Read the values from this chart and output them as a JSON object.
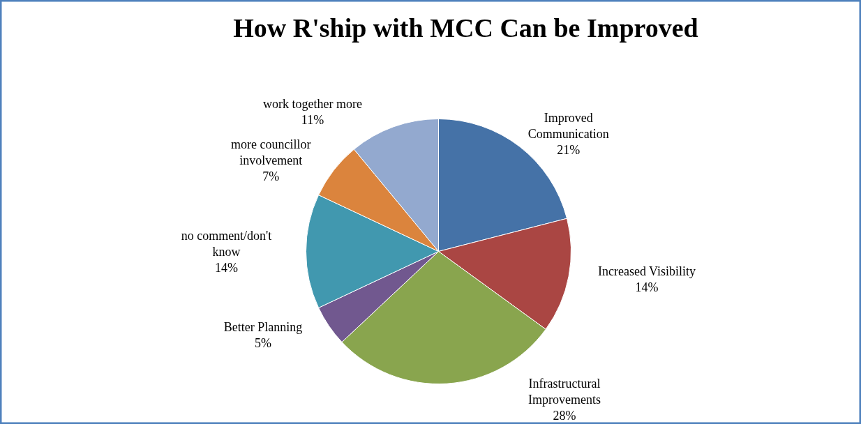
{
  "chart_data": {
    "type": "pie",
    "title": "How R'ship with MCC Can be Improved",
    "categories": [
      "Improved\nCommunication",
      "Increased Visibility",
      "Infrastructural\nImprovements",
      "Better Planning",
      "no comment/don't\nknow",
      "more councillor\ninvolvement",
      "work together more"
    ],
    "values": [
      21,
      14,
      28,
      5,
      14,
      7,
      11
    ],
    "value_labels": [
      "21%",
      "14%",
      "28%",
      "5%",
      "14%",
      "7%",
      "11%"
    ],
    "colors": [
      "#4572a7",
      "#aa4643",
      "#89a54e",
      "#71588f",
      "#4198af",
      "#db843d",
      "#93a9cf"
    ]
  }
}
